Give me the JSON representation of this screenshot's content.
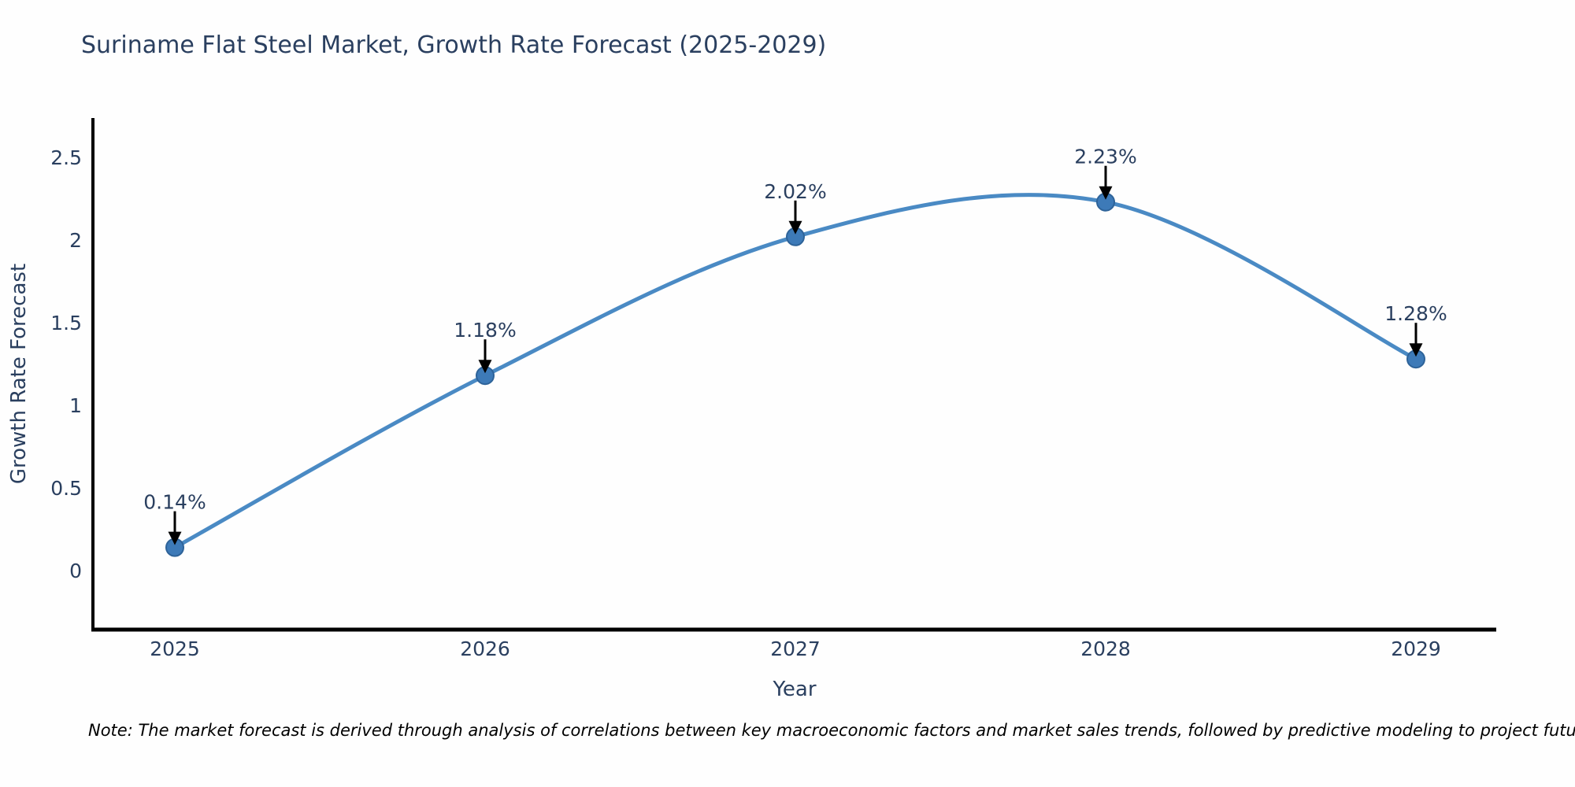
{
  "title": "Suriname Flat Steel Market, Growth Rate Forecast (2025-2029)",
  "note": "Note: The market forecast is derived through analysis of correlations between key macroeconomic factors and market sales trends, followed by predictive modeling to project future sales",
  "chart_data": {
    "type": "line",
    "title": "Suriname Flat Steel Market, Growth Rate Forecast (2025-2029)",
    "xlabel": "Year",
    "ylabel": "Growth Rate Forecast",
    "x": [
      2025,
      2026,
      2027,
      2028,
      2029
    ],
    "x_tick_labels": [
      "2025",
      "2026",
      "2027",
      "2028",
      "2029"
    ],
    "series": [
      {
        "name": "Growth Rate Forecast",
        "values": [
          0.14,
          1.18,
          2.02,
          2.23,
          1.28
        ]
      }
    ],
    "point_labels": [
      "0.14%",
      "1.18%",
      "2.02%",
      "2.23%",
      "1.28%"
    ],
    "yticks": [
      0,
      0.5,
      1,
      1.5,
      2,
      2.5
    ],
    "ylim": [
      -0.36,
      2.74
    ],
    "xlim": [
      2024.74,
      2029.26
    ],
    "grid": false,
    "legend": "none",
    "line_shape": "spline",
    "marker_shape": "circle",
    "annotation_arrows": true,
    "colors": {
      "line": "#4a8ac4",
      "marker_fill": "#3d7ab8",
      "marker_edge": "#2e6399",
      "arrow": "#000000",
      "axis": "#000000",
      "text": "#2a3f5f",
      "note_text": "#000000",
      "background": "#fefefe"
    }
  }
}
